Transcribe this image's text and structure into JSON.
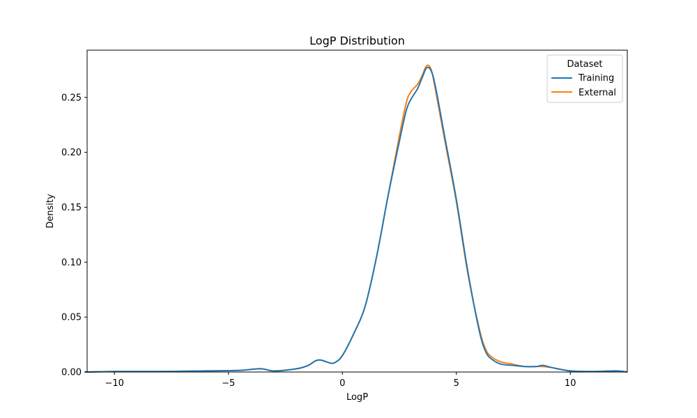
{
  "chart_data": {
    "type": "line",
    "title": "LogP Distribution",
    "xlabel": "LogP",
    "ylabel": "Density",
    "xlim": [
      -11.2,
      12.5
    ],
    "ylim": [
      0,
      0.293
    ],
    "x_ticks": [
      -10,
      -5,
      0,
      5,
      10
    ],
    "x_tick_labels": [
      "−10",
      "−5",
      "0",
      "5",
      "10"
    ],
    "y_ticks": [
      0.0,
      0.05,
      0.1,
      0.15,
      0.2,
      0.25
    ],
    "y_tick_labels": [
      "0.00",
      "0.05",
      "0.10",
      "0.15",
      "0.20",
      "0.25"
    ],
    "grid": false,
    "legend": {
      "title": "Dataset",
      "placement": "top-right"
    },
    "series": [
      {
        "name": "External",
        "color": "#ff7f0e",
        "x": [
          -11.3,
          -10,
          -8,
          -6,
          -4.5,
          -3.6,
          -3,
          -2,
          -1.5,
          -1.2,
          -1,
          -0.8,
          -0.5,
          -0.3,
          0,
          0.5,
          1,
          1.5,
          2,
          2.5,
          2.8,
          3,
          3.3,
          3.5,
          3.7,
          3.9,
          4.1,
          4.5,
          5,
          5.5,
          6,
          6.3,
          6.6,
          7,
          7.5,
          8,
          8.5,
          8.8,
          9.2,
          10,
          11,
          12,
          12.5
        ],
        "y": [
          0.0,
          0.0005,
          0.0005,
          0.001,
          0.0015,
          0.003,
          0.001,
          0.003,
          0.006,
          0.01,
          0.011,
          0.01,
          0.008,
          0.009,
          0.015,
          0.035,
          0.06,
          0.105,
          0.16,
          0.215,
          0.245,
          0.255,
          0.262,
          0.27,
          0.279,
          0.275,
          0.255,
          0.21,
          0.155,
          0.09,
          0.04,
          0.02,
          0.013,
          0.009,
          0.007,
          0.005,
          0.005,
          0.005,
          0.004,
          0.001,
          0.0005,
          0.001,
          0.0
        ]
      },
      {
        "name": "Training",
        "color": "#1f77b4",
        "x": [
          -11.3,
          -10,
          -8,
          -6,
          -4.5,
          -3.6,
          -3,
          -2,
          -1.5,
          -1.2,
          -1,
          -0.8,
          -0.5,
          -0.3,
          0,
          0.5,
          1,
          1.5,
          2,
          2.5,
          2.8,
          3,
          3.3,
          3.5,
          3.7,
          3.9,
          4.1,
          4.5,
          5,
          5.5,
          6,
          6.3,
          6.6,
          7,
          7.5,
          8,
          8.5,
          8.8,
          9.2,
          10,
          11,
          12,
          12.5
        ],
        "y": [
          0.0,
          0.0005,
          0.0005,
          0.001,
          0.0015,
          0.003,
          0.001,
          0.003,
          0.006,
          0.01,
          0.011,
          0.01,
          0.008,
          0.009,
          0.015,
          0.035,
          0.06,
          0.105,
          0.16,
          0.21,
          0.238,
          0.248,
          0.258,
          0.268,
          0.277,
          0.274,
          0.258,
          0.213,
          0.157,
          0.092,
          0.038,
          0.018,
          0.011,
          0.007,
          0.006,
          0.005,
          0.005,
          0.006,
          0.004,
          0.001,
          0.0005,
          0.001,
          0.0
        ]
      }
    ]
  }
}
